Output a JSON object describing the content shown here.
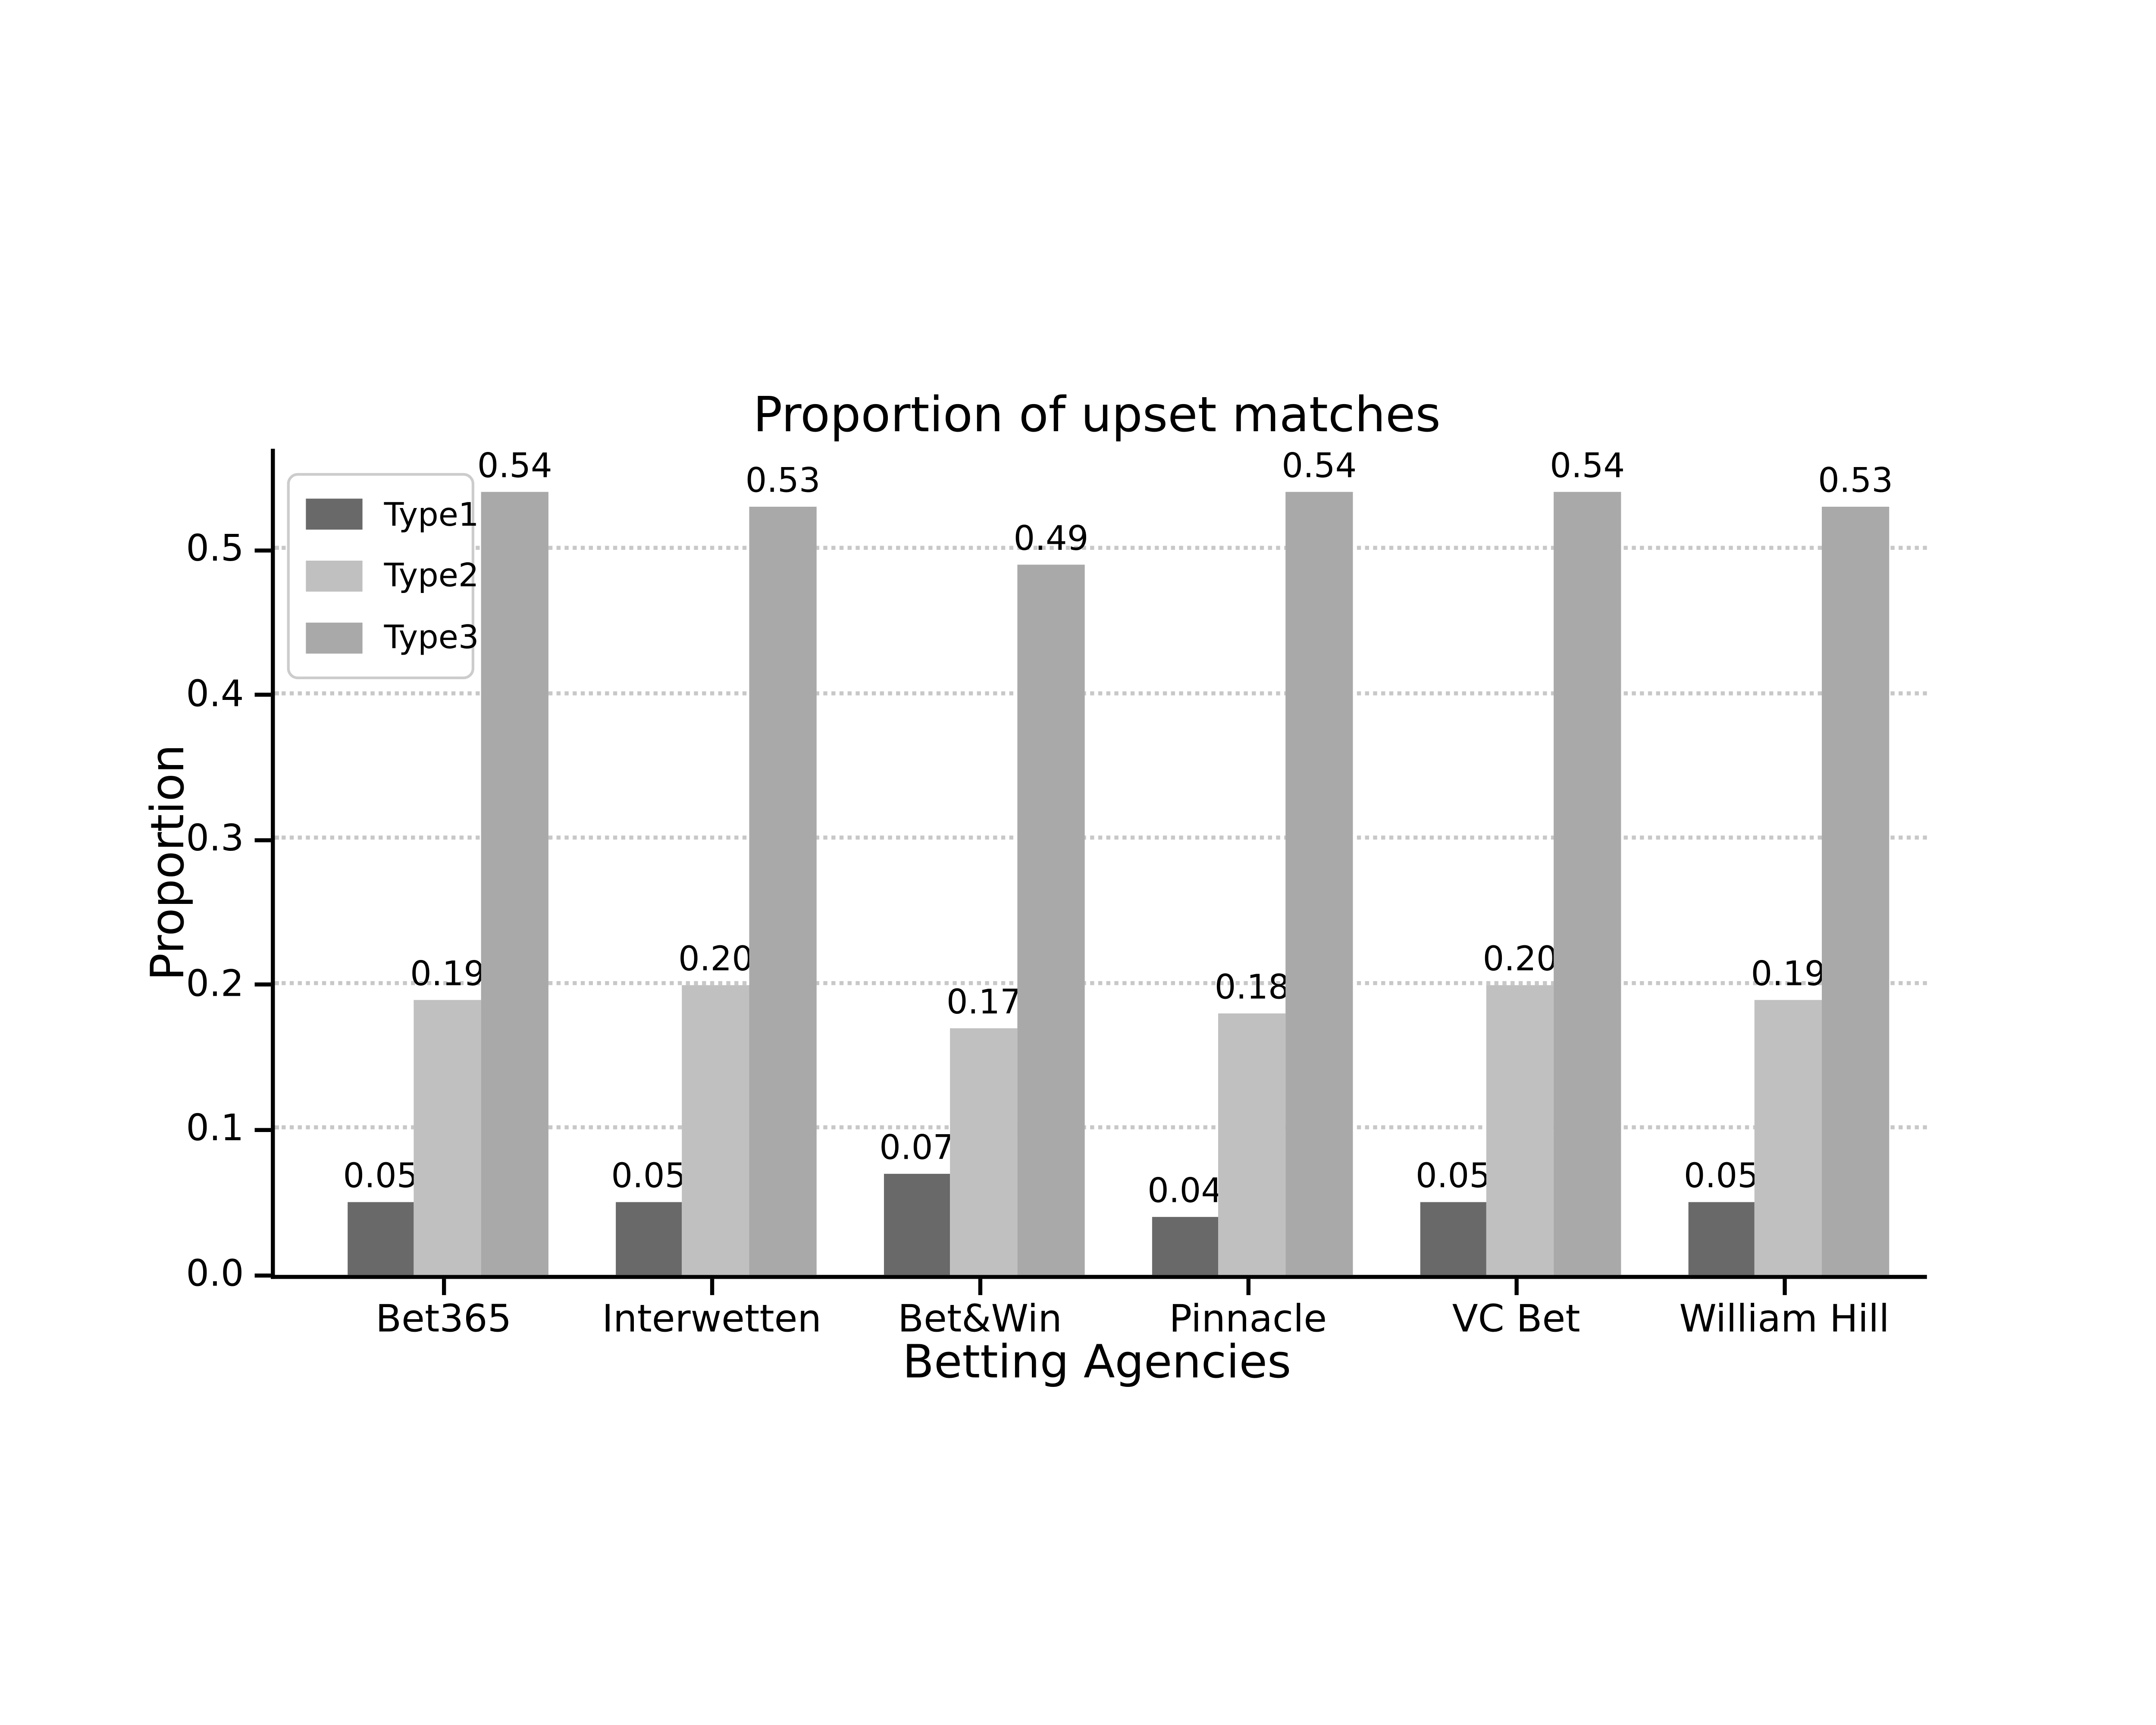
{
  "chart_data": {
    "type": "bar",
    "title": "Proportion of upset matches",
    "xlabel": "Betting Agencies",
    "ylabel": "Proportion",
    "categories": [
      "Bet365",
      "Interwetten",
      "Bet&Win",
      "Pinnacle",
      "VC Bet",
      "William Hill"
    ],
    "series": [
      {
        "name": "Type1",
        "color": "#696969",
        "values": [
          0.05,
          0.05,
          0.07,
          0.04,
          0.05,
          0.05
        ],
        "labels": [
          "0.05",
          "0.05",
          "0.07",
          "0.04",
          "0.05",
          "0.05"
        ]
      },
      {
        "name": "Type2",
        "color": "#C0C0C0",
        "values": [
          0.19,
          0.2,
          0.17,
          0.18,
          0.2,
          0.19
        ],
        "labels": [
          "0.19",
          "0.20",
          "0.17",
          "0.18",
          "0.20",
          "0.19"
        ]
      },
      {
        "name": "Type3",
        "color": "#A9A9A9",
        "values": [
          0.54,
          0.53,
          0.49,
          0.54,
          0.54,
          0.53
        ],
        "labels": [
          "0.54",
          "0.53",
          "0.49",
          "0.54",
          "0.54",
          "0.53"
        ]
      }
    ],
    "yticks": [
      "0.0",
      "0.1",
      "0.2",
      "0.3",
      "0.4",
      "0.5"
    ],
    "ylim": [
      0,
      0.57
    ],
    "grid": "horizontal dotted lines at 0.1 intervals",
    "grid_color": "#c8c8c8",
    "legend_position": "upper-left",
    "legend_entries": [
      "Type1",
      "Type2",
      "Type3"
    ],
    "background_color": "#ffffff",
    "spine_color": "#000000"
  }
}
